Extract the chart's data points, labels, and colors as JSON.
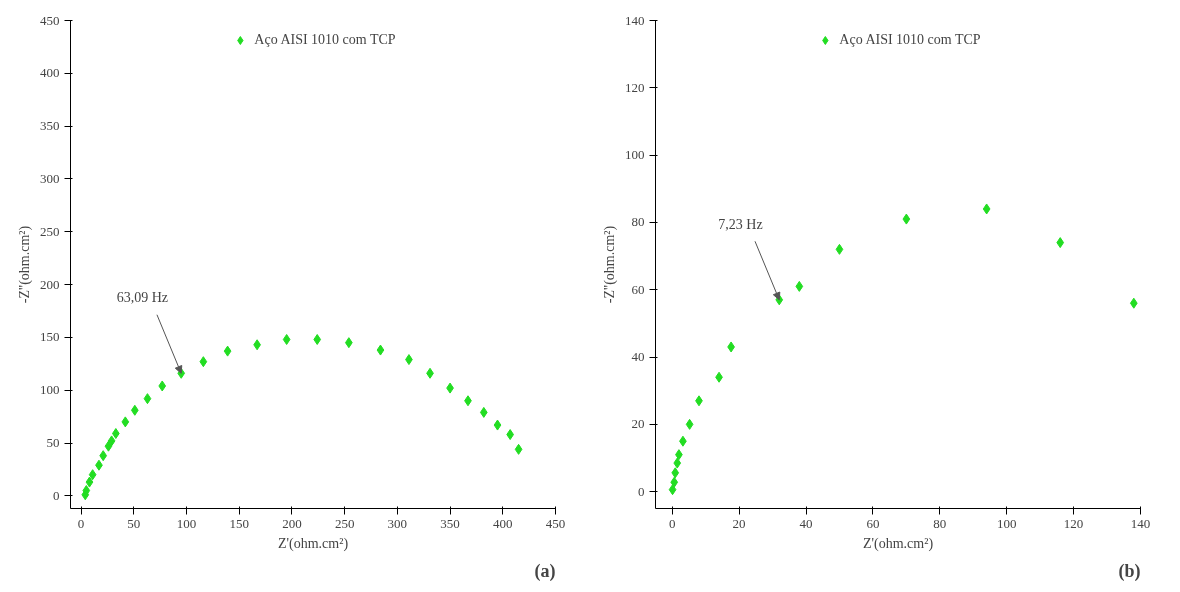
{
  "chart_data": [
    {
      "type": "scatter",
      "xlabel": "Z'(ohm.cm²)",
      "ylabel": "-Z''(ohm.cm²)",
      "marker": "diamond",
      "legend": "top",
      "grid": false,
      "xlim": [
        -10,
        450
      ],
      "ylim": [
        -12,
        450
      ],
      "xticks": [
        0,
        50,
        100,
        150,
        200,
        250,
        300,
        350,
        400,
        450
      ],
      "yticks": [
        0,
        50,
        100,
        150,
        200,
        250,
        300,
        350,
        400,
        450
      ],
      "annotations": [
        {
          "text": "63,09 Hz",
          "x": 95,
          "y": 116
        },
        "(a)"
      ],
      "series": [
        {
          "name": "Aço AISI 1010 com TCP",
          "color": "#22dd22",
          "x": [
            4,
            5,
            8,
            11,
            17,
            21,
            26,
            29,
            33,
            42,
            51,
            63,
            77,
            95,
            116,
            139,
            167,
            195,
            224,
            254,
            284,
            311,
            331,
            350,
            367,
            382,
            395,
            407,
            415
          ],
          "values": [
            1,
            5,
            13,
            20,
            29,
            38,
            47,
            52,
            59,
            70,
            81,
            92,
            104,
            116,
            127,
            137,
            143,
            148,
            148,
            145,
            138,
            129,
            116,
            102,
            90,
            79,
            67,
            58,
            44
          ]
        }
      ]
    },
    {
      "type": "scatter",
      "xlabel": "Z'(ohm.cm²)",
      "ylabel": "-Z''(ohm.cm²)",
      "marker": "diamond",
      "legend": "top",
      "grid": false,
      "xlim": [
        -5,
        140
      ],
      "ylim": [
        -5,
        140
      ],
      "xticks": [
        0,
        20,
        40,
        60,
        80,
        100,
        120,
        140
      ],
      "yticks": [
        0,
        20,
        40,
        60,
        80,
        100,
        120,
        140
      ],
      "annotations": [
        {
          "text": "7,23 Hz",
          "x": 32,
          "y": 57
        },
        "(b)"
      ],
      "series": [
        {
          "name": "Aço AISI 1010 com TCP",
          "color": "#22dd22",
          "x": [
            0.1,
            0.6,
            0.9,
            1.5,
            2,
            3.2,
            5.2,
            8,
            14,
            17.6,
            32,
            38,
            50,
            70,
            94,
            116,
            138
          ],
          "values": [
            0.6,
            2.8,
            5.6,
            8.5,
            11,
            15,
            20,
            27,
            34,
            43,
            57,
            61,
            72,
            81,
            84,
            74,
            56
          ]
        }
      ]
    }
  ]
}
